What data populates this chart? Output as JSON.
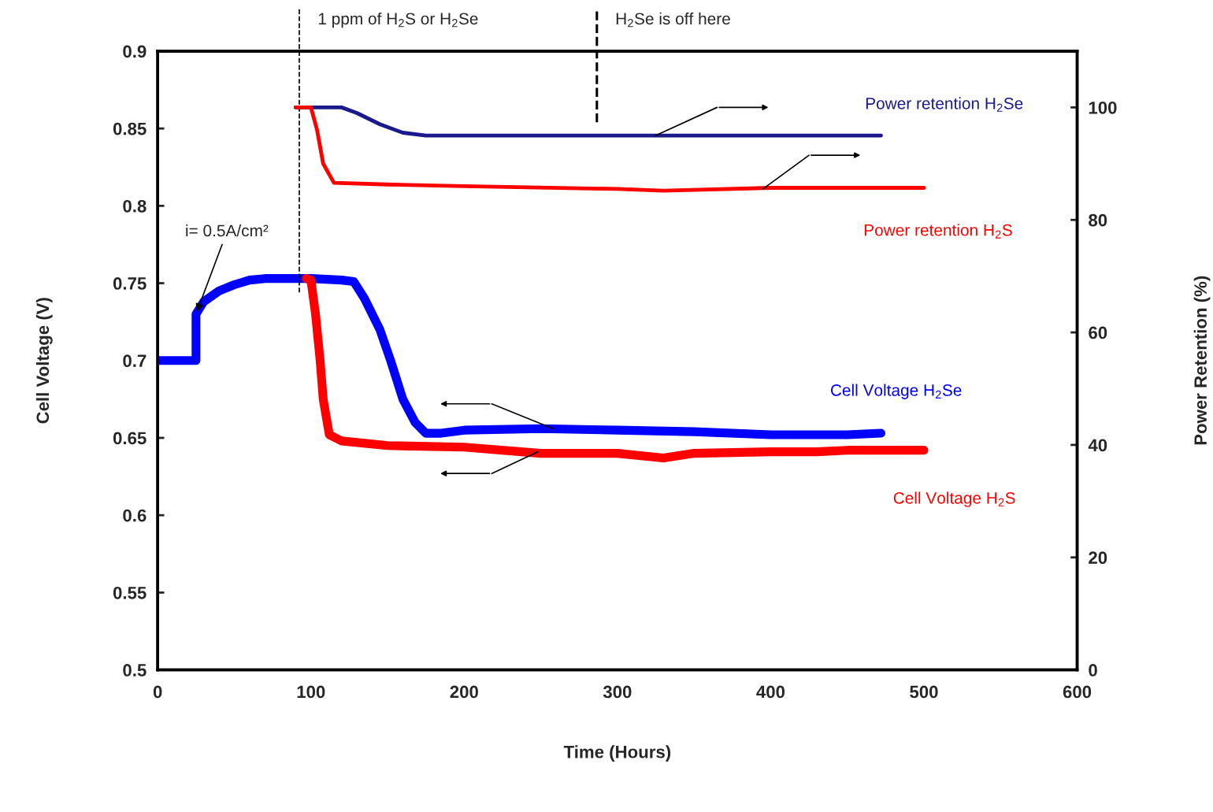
{
  "chart_data": {
    "type": "line",
    "xlabel": "Time (Hours)",
    "ylabel": "Cell Voltage (V)",
    "y2label": "Power Retention (%)",
    "xlim": [
      0,
      600
    ],
    "xticks": [
      0,
      100,
      200,
      300,
      400,
      500,
      600
    ],
    "ylim": [
      0.5,
      0.9
    ],
    "yticks": [
      {
        "value": 0.5,
        "label": "0.5"
      },
      {
        "value": 0.55,
        "label": "0.55"
      },
      {
        "value": 0.6,
        "label": "0.6"
      },
      {
        "value": 0.65,
        "label": "0.65"
      },
      {
        "value": 0.7,
        "label": "0.7"
      },
      {
        "value": 0.75,
        "label": "0.75"
      },
      {
        "value": 0.8,
        "label": "0.8"
      },
      {
        "value": 0.85,
        "label": "0.85"
      },
      {
        "value": 0.9,
        "label": "0.9"
      }
    ],
    "y2lim": [
      0,
      110
    ],
    "y2ticks": [
      0,
      20,
      40,
      60,
      80,
      100
    ],
    "grid": false,
    "legend": false,
    "marker": "none",
    "line_style": "solid",
    "series": [
      {
        "name": "Power retention H$_{2}$Se",
        "color": "#1a1a8c",
        "axis": "y2",
        "x": [
          90,
          120,
          130,
          145,
          160,
          175,
          250,
          300,
          400,
          472
        ],
        "values": [
          100,
          100,
          99,
          97,
          95.5,
          95,
          95,
          95,
          95,
          95
        ]
      },
      {
        "name": "Power retention H$_{2}$S",
        "color": "#ff0000",
        "axis": "y2",
        "x": [
          90,
          100,
          104,
          108,
          115,
          150,
          200,
          300,
          330,
          400,
          500
        ],
        "values": [
          100,
          100,
          96,
          90,
          86.6,
          86.3,
          86,
          85.5,
          85.2,
          85.7,
          85.7
        ]
      },
      {
        "name": "Cell Voltage H$_{2}$Se",
        "color": "#0000ff",
        "x": [
          0,
          25,
          25,
          30,
          40,
          50,
          60,
          70,
          100,
          120,
          128,
          135,
          145,
          152,
          160,
          168,
          175,
          185,
          200,
          250,
          300,
          350,
          400,
          450,
          472
        ],
        "values": [
          0.7,
          0.7,
          0.73,
          0.738,
          0.745,
          0.749,
          0.752,
          0.753,
          0.753,
          0.752,
          0.751,
          0.74,
          0.72,
          0.7,
          0.675,
          0.66,
          0.653,
          0.653,
          0.655,
          0.656,
          0.655,
          0.654,
          0.652,
          0.652,
          0.653
        ]
      },
      {
        "name": "Cell Voltage H$_{2}$S",
        "color": "#ff0000",
        "x": [
          97,
          100,
          103,
          106,
          108,
          112,
          120,
          150,
          200,
          250,
          300,
          330,
          350,
          400,
          430,
          450,
          500
        ],
        "values": [
          0.753,
          0.752,
          0.73,
          0.7,
          0.675,
          0.652,
          0.648,
          0.645,
          0.644,
          0.64,
          0.64,
          0.637,
          0.64,
          0.641,
          0.641,
          0.642,
          0.642
        ]
      }
    ],
    "ref_lines": [
      {
        "axis": "x",
        "value": 92.4,
        "label": "1 ppm of H$_{2}$S or H$_{2}$Se",
        "line_style": "dashed"
      },
      {
        "axis": "x",
        "value": 286.6,
        "label": "H$_{2}$Se is off here",
        "line_style": "dashed"
      }
    ],
    "annotations": [
      {
        "text": "i= 0.5A/cm²",
        "x": 25,
        "y": 0.73
      }
    ]
  }
}
